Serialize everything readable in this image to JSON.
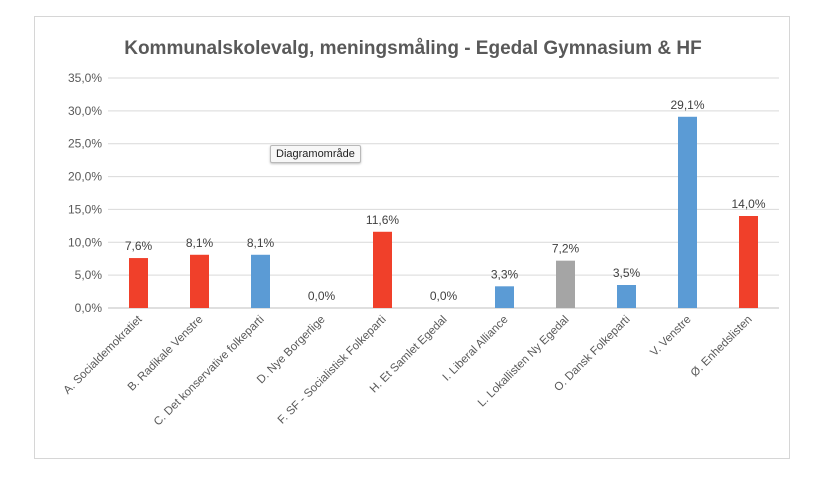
{
  "tooltip": "Diagramområde",
  "chart_data": {
    "type": "bar",
    "title": "Kommunalskolevalg, meningsmåling - Egedal Gymnasium & HF",
    "xlabel": "",
    "ylabel": "",
    "ylim": [
      0,
      35
    ],
    "yticks": [
      "0,0%",
      "5,0%",
      "10,0%",
      "15,0%",
      "20,0%",
      "25,0%",
      "30,0%",
      "35,0%"
    ],
    "grid": true,
    "categories": [
      "A. Socialdemokratiet",
      "B. Radikale Venstre",
      "C. Det konservative folkeparti",
      "D. Nye Borgerlige",
      "F. SF - Socialistisk Folkeparti",
      "H. Et Samlet Egedal",
      "I. Liberal Alliance",
      "L. Lokallisten Ny Egedal",
      "O. Dansk Folkeparti",
      "V. Venstre",
      "Ø. Enhedslisten"
    ],
    "values": [
      7.6,
      8.1,
      8.1,
      0.0,
      11.6,
      0.0,
      3.3,
      7.2,
      3.5,
      29.1,
      14.0
    ],
    "data_labels": [
      "7,6%",
      "8,1%",
      "8,1%",
      "0,0%",
      "11,6%",
      "0,0%",
      "3,3%",
      "7,2%",
      "3,5%",
      "29,1%",
      "14,0%"
    ],
    "colors": [
      "#f0402a",
      "#f0402a",
      "#5b9bd5",
      "#5b9bd5",
      "#f0402a",
      "#a5a5a5",
      "#5b9bd5",
      "#a5a5a5",
      "#5b9bd5",
      "#5b9bd5",
      "#f0402a"
    ]
  }
}
